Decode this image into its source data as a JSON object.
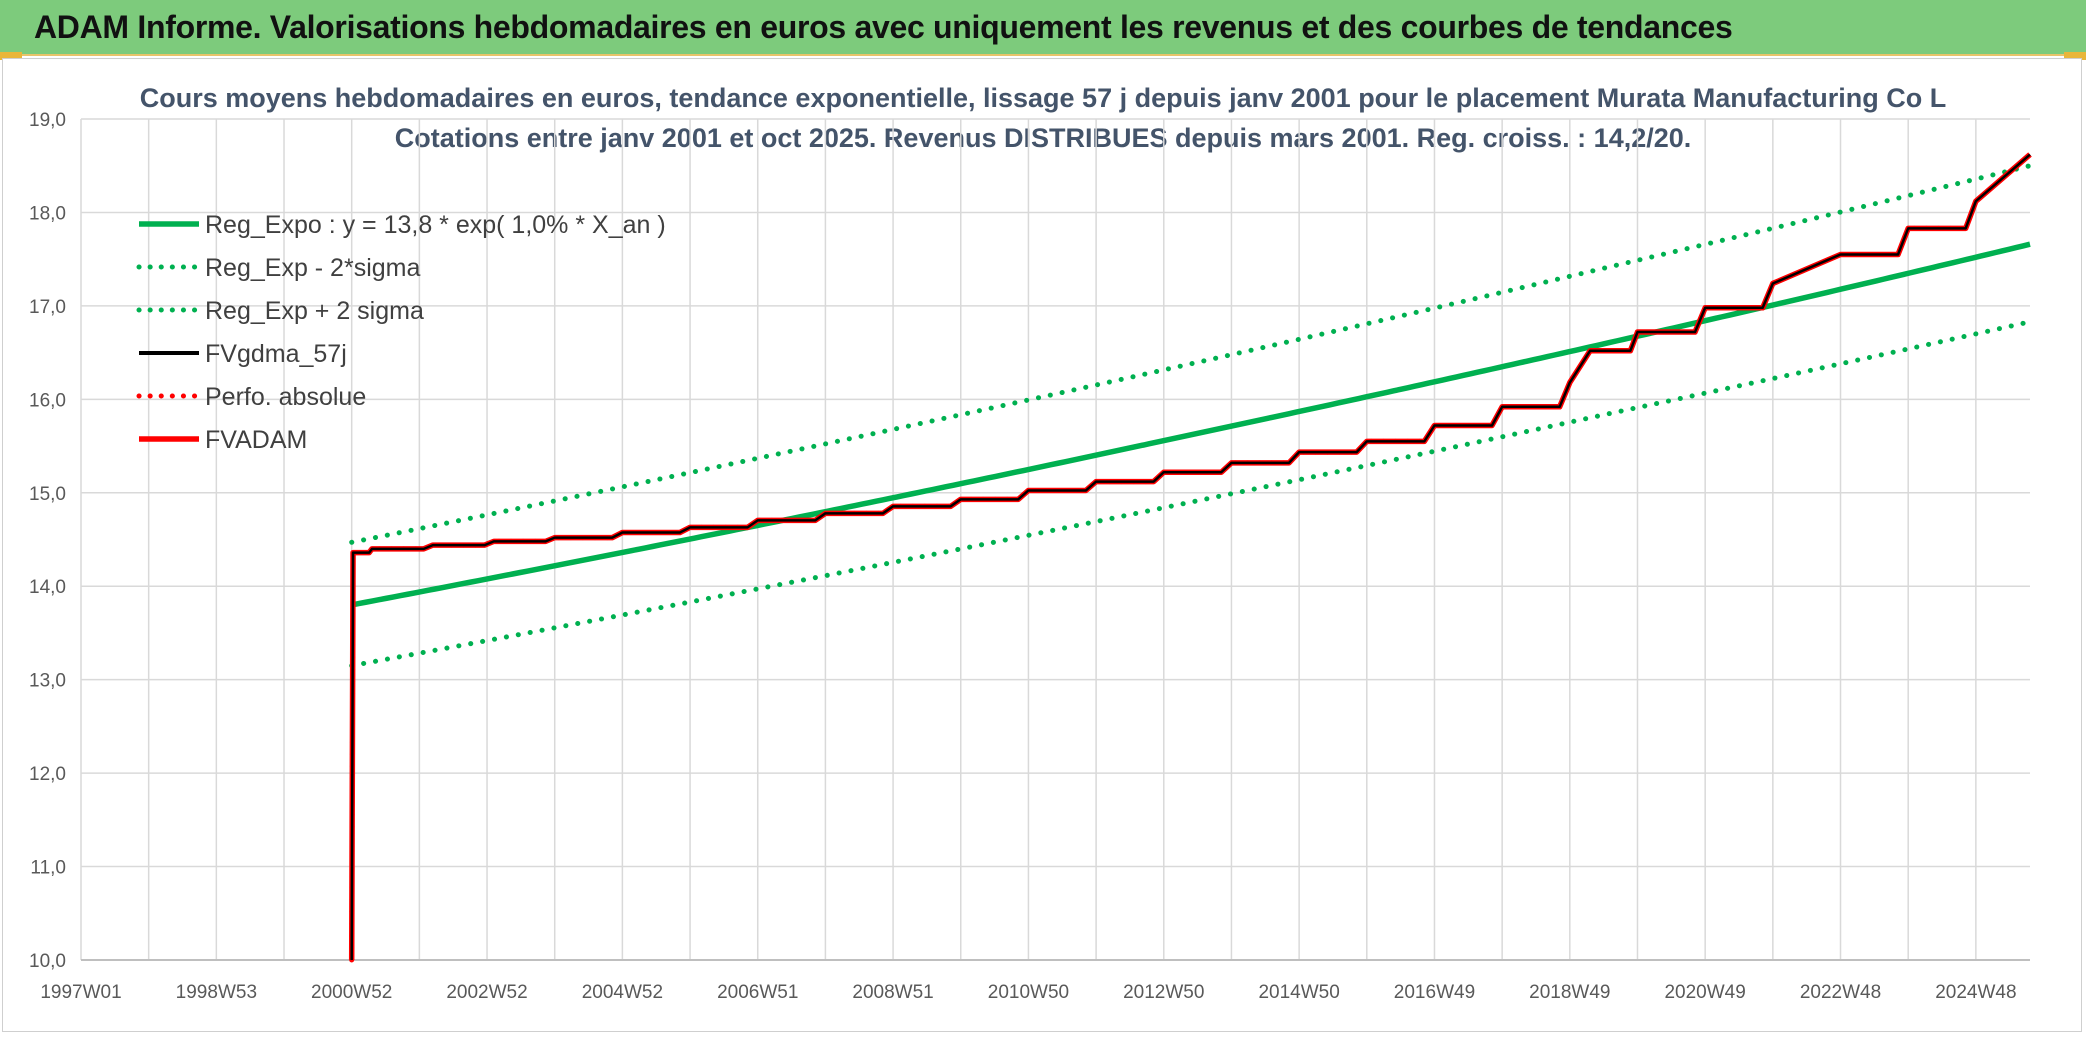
{
  "banner": {
    "title": "ADAM Informe. Valorisations hebdomadaires en euros avec uniquement les revenus et des courbes de tendances"
  },
  "colors": {
    "banner": "#7dcb7c",
    "green": "#00b050",
    "black": "#000000",
    "red": "#ff0000",
    "grid": "#d9d9d9"
  },
  "chart_data": {
    "type": "line",
    "title_lines": [
      "Cours moyens hebdomadaires en euros, tendance exponentielle, lissage 57 j depuis janv 2001 pour le placement Murata Manufacturing Co L",
      "Cotations entre janv 2001 et oct 2025. Revenus DISTRIBUES depuis mars 2001. Reg. croiss. : 14,2/20."
    ],
    "xlabel": "",
    "ylabel": "",
    "ylim": [
      10,
      19
    ],
    "xlim": [
      1997.0,
      2025.8
    ],
    "grid": true,
    "legend_position": "top-left",
    "x_tick_labels": [
      "1997W01",
      "1998W53",
      "2000W52",
      "2002W52",
      "2004W52",
      "2006W51",
      "2008W51",
      "2010W50",
      "2012W50",
      "2014W50",
      "2016W49",
      "2018W49",
      "2020W49",
      "2022W48",
      "2024W48"
    ],
    "y_tick_labels": [
      "10,0",
      "11,0",
      "12,0",
      "13,0",
      "14,0",
      "15,0",
      "16,0",
      "17,0",
      "18,0",
      "19,0"
    ],
    "series": [
      {
        "name": "Reg_Expo : y = 13,8 * exp( 1,0% *  X_an )",
        "color": "#00b050",
        "style": "solid",
        "width": "thick",
        "x": [
          2001.0,
          2007.2,
          2013.4,
          2019.6,
          2025.8
        ],
        "y": [
          13.8,
          14.68,
          15.62,
          16.61,
          17.66
        ]
      },
      {
        "name": "Reg_Exp - 2*sigma",
        "color": "#00b050",
        "style": "dotted",
        "x": [
          2001.0,
          2007.2,
          2013.4,
          2019.6,
          2025.8
        ],
        "y": [
          13.15,
          14.0,
          14.9,
          15.85,
          16.83
        ]
      },
      {
        "name": "Reg_Exp + 2 sigma",
        "color": "#00b050",
        "style": "dotted",
        "x": [
          2001.0,
          2007.2,
          2013.4,
          2019.6,
          2025.8
        ],
        "y": [
          14.47,
          15.4,
          16.38,
          17.42,
          18.5
        ]
      },
      {
        "name": "FVgdma_57j",
        "color": "#000000",
        "style": "solid",
        "x": [
          2001.0,
          2001.02,
          2001.3,
          2004.0,
          2006.0,
          2008.0,
          2010.0,
          2012.0,
          2014.0,
          2016.0,
          2017.0,
          2018.0,
          2019.0,
          2019.3,
          2020.0,
          2021.0,
          2022.0,
          2023.0,
          2024.0,
          2025.0,
          2025.8
        ],
        "y": [
          10.0,
          14.36,
          14.4,
          14.52,
          14.63,
          14.78,
          14.93,
          15.12,
          15.32,
          15.55,
          15.72,
          15.92,
          16.18,
          16.52,
          16.72,
          16.98,
          17.24,
          17.55,
          17.83,
          18.12,
          18.62
        ]
      },
      {
        "name": "Perfo. absolue",
        "color": "#ff0000",
        "style": "dotted",
        "x": [
          2001.0,
          2001.02,
          2001.3,
          2004.0,
          2006.0,
          2008.0,
          2010.0,
          2012.0,
          2014.0,
          2016.0,
          2017.0,
          2018.0,
          2019.0,
          2019.3,
          2020.0,
          2021.0,
          2022.0,
          2023.0,
          2024.0,
          2025.0,
          2025.8
        ],
        "y": [
          10.0,
          14.36,
          14.4,
          14.52,
          14.63,
          14.78,
          14.93,
          15.12,
          15.32,
          15.55,
          15.72,
          15.92,
          16.18,
          16.52,
          16.72,
          16.98,
          17.24,
          17.55,
          17.83,
          18.12,
          18.62
        ]
      },
      {
        "name": "FVADAM",
        "color": "#ff0000",
        "style": "solid",
        "width": "thick",
        "x": [
          2001.0,
          2001.02,
          2001.3,
          2004.0,
          2006.0,
          2008.0,
          2010.0,
          2012.0,
          2014.0,
          2016.0,
          2017.0,
          2018.0,
          2019.0,
          2019.3,
          2020.0,
          2021.0,
          2022.0,
          2023.0,
          2024.0,
          2025.0,
          2025.8
        ],
        "y": [
          10.0,
          14.36,
          14.4,
          14.52,
          14.63,
          14.78,
          14.93,
          15.12,
          15.32,
          15.55,
          15.72,
          15.92,
          16.18,
          16.52,
          16.72,
          16.98,
          17.24,
          17.55,
          17.83,
          18.12,
          18.62
        ]
      }
    ]
  }
}
